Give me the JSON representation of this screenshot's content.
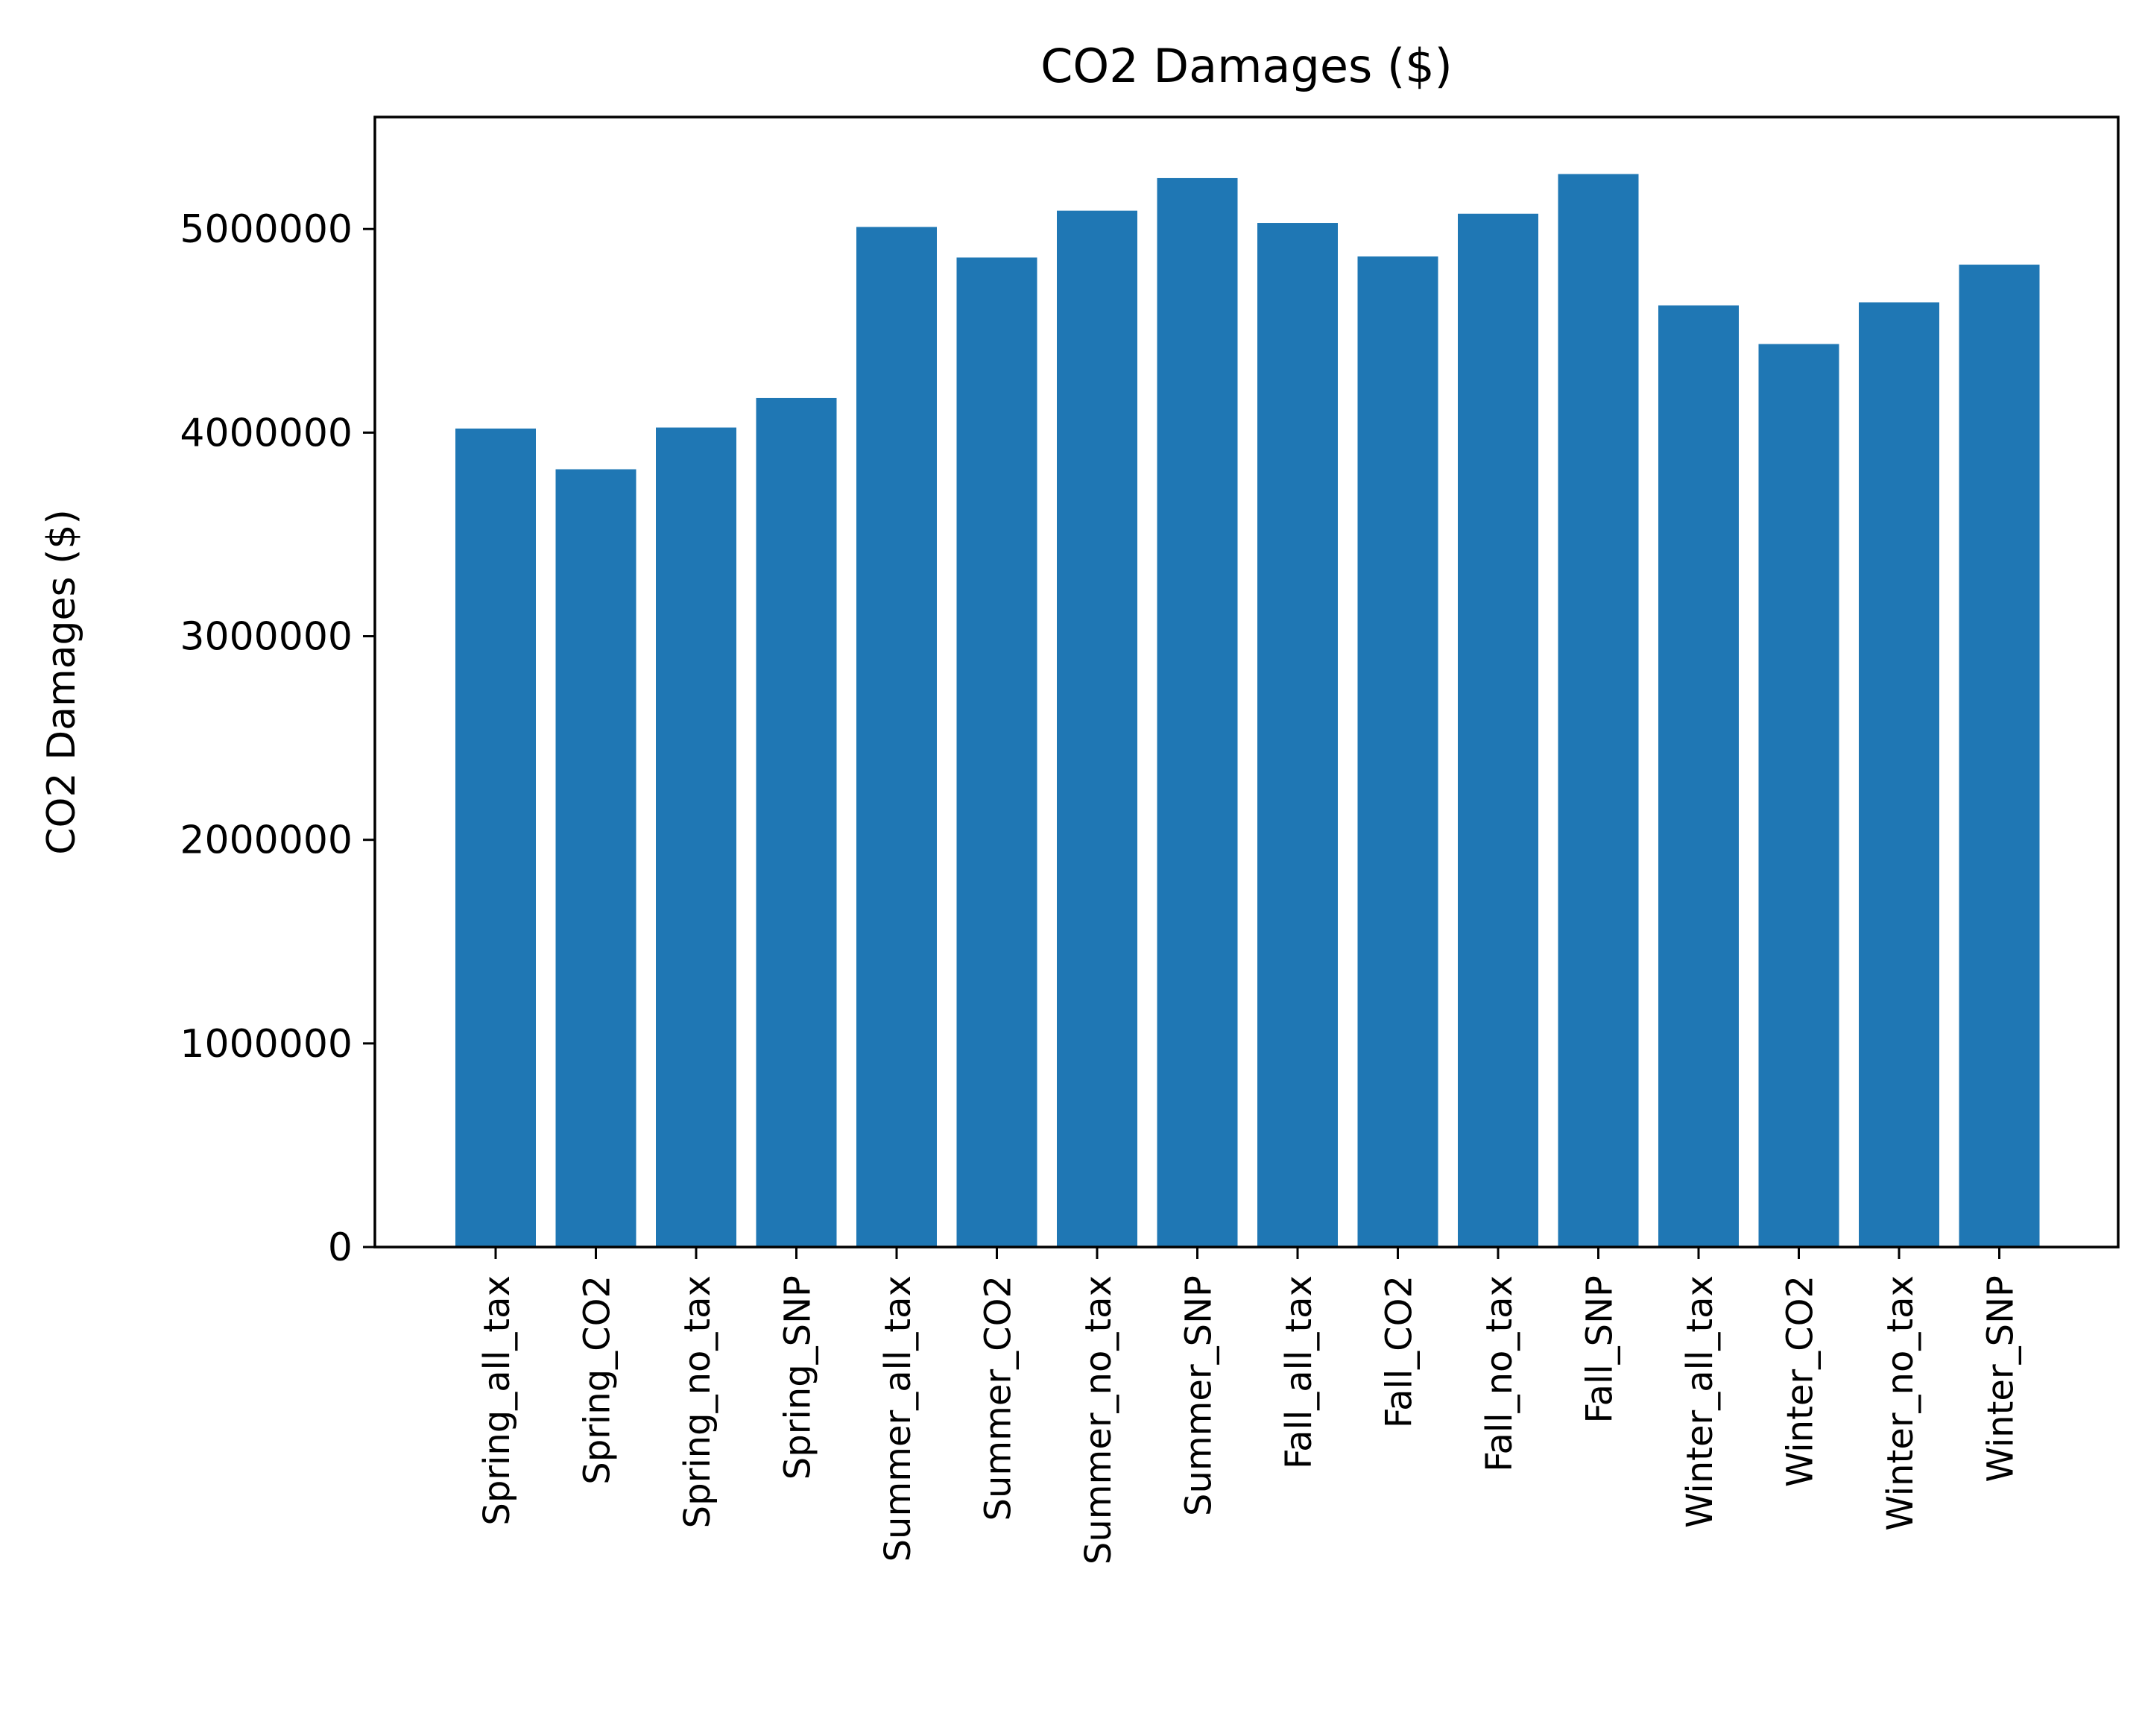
{
  "chart_data": {
    "type": "bar",
    "title": "CO2 Damages ($)",
    "xlabel": "",
    "ylabel": "CO2 Damages ($)",
    "categories": [
      "Spring_all_tax",
      "Spring_CO2",
      "Spring_no_tax",
      "Spring_SNP",
      "Summer_all_tax",
      "Summer_CO2",
      "Summer_no_tax",
      "Summer_SNP",
      "Fall_all_tax",
      "Fall_CO2",
      "Fall_no_tax",
      "Fall_SNP",
      "Winter_all_tax",
      "Winter_CO2",
      "Winter_no_tax",
      "Winter_SNP"
    ],
    "values": [
      4020000,
      3820000,
      4025000,
      4170000,
      5010000,
      4860000,
      5090000,
      5250000,
      5030000,
      4865000,
      5075000,
      5270000,
      4625000,
      4435000,
      4640000,
      4825000
    ],
    "ylim": [
      0,
      5550000
    ],
    "yticks": [
      0,
      1000000,
      2000000,
      3000000,
      4000000,
      5000000
    ],
    "ytick_labels": [
      "0",
      "1000000",
      "2000000",
      "3000000",
      "4000000",
      "5000000"
    ],
    "bar_color": "#1f77b4",
    "grid": false,
    "legend": false
  }
}
